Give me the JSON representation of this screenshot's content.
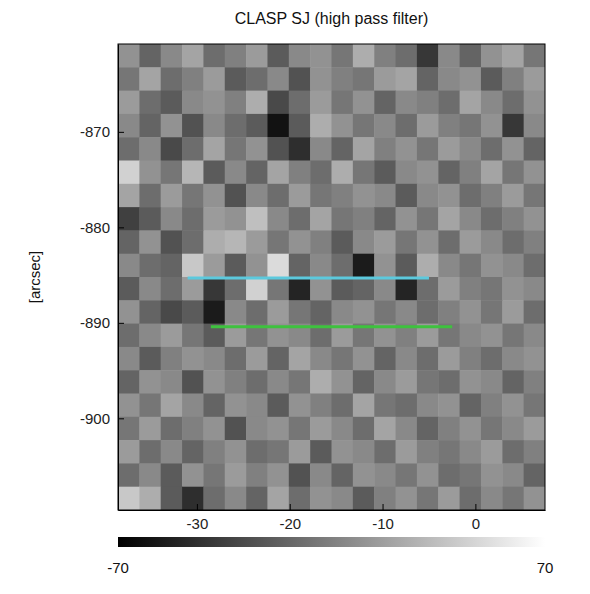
{
  "chart_data": {
    "type": "heatmap",
    "title": "CLASP SJ (high pass filter)",
    "y_label": "[arcsec]",
    "xlim": [
      -38.5,
      7.5
    ],
    "ylim": [
      -909.6,
      -860.8
    ],
    "xticks": [
      -30,
      -20,
      -10,
      0
    ],
    "yticks": [
      -870,
      -880,
      -890,
      -900
    ],
    "z": [
      [
        10,
        -15,
        5,
        20,
        -10,
        0,
        15,
        -20,
        5,
        10,
        -5,
        25,
        0,
        -10,
        -40,
        5,
        -15,
        10,
        20,
        -5
      ],
      [
        -5,
        20,
        -10,
        0,
        15,
        -20,
        -10,
        5,
        -25,
        10,
        0,
        -5,
        15,
        20,
        -15,
        5,
        10,
        -20,
        0,
        15
      ],
      [
        15,
        -10,
        -20,
        5,
        10,
        0,
        25,
        -30,
        -10,
        15,
        -5,
        10,
        -15,
        5,
        0,
        -10,
        20,
        5,
        -10,
        10
      ],
      [
        5,
        -15,
        10,
        -25,
        5,
        -10,
        -20,
        -60,
        -20,
        25,
        10,
        -5,
        5,
        -10,
        15,
        0,
        -5,
        10,
        -40,
        5
      ],
      [
        -10,
        5,
        -30,
        -10,
        20,
        -5,
        10,
        -25,
        -45,
        5,
        -15,
        20,
        0,
        10,
        -5,
        15,
        5,
        -10,
        10,
        -15
      ],
      [
        45,
        10,
        -5,
        30,
        -20,
        5,
        -15,
        20,
        0,
        -10,
        25,
        -5,
        -20,
        5,
        10,
        -15,
        0,
        20,
        -5,
        10
      ],
      [
        20,
        -10,
        15,
        -5,
        10,
        -25,
        5,
        -10,
        15,
        -5,
        0,
        10,
        5,
        -20,
        5,
        10,
        -10,
        0,
        15,
        -5
      ],
      [
        -35,
        -20,
        5,
        -10,
        15,
        10,
        35,
        5,
        -10,
        20,
        -5,
        0,
        -15,
        10,
        -5,
        20,
        5,
        -10,
        0,
        10
      ],
      [
        -15,
        10,
        -25,
        -10,
        25,
        30,
        15,
        -5,
        10,
        0,
        -20,
        5,
        15,
        -5,
        10,
        -10,
        15,
        5,
        -10,
        0
      ],
      [
        5,
        -10,
        -15,
        40,
        15,
        -20,
        10,
        50,
        -15,
        5,
        -10,
        -55,
        10,
        -20,
        25,
        5,
        -5,
        10,
        5,
        -10
      ],
      [
        -20,
        5,
        -10,
        15,
        -40,
        -10,
        45,
        -5,
        -50,
        10,
        -20,
        -15,
        5,
        -50,
        -10,
        15,
        0,
        -5,
        10,
        5
      ],
      [
        10,
        -15,
        -30,
        -20,
        -55,
        5,
        -10,
        15,
        -5,
        -15,
        5,
        10,
        -5,
        5,
        -10,
        0,
        10,
        -5,
        15,
        -10
      ],
      [
        -10,
        5,
        15,
        -5,
        -20,
        15,
        -5,
        10,
        5,
        -10,
        15,
        -5,
        10,
        0,
        15,
        -5,
        5,
        10,
        -5,
        5
      ],
      [
        5,
        -20,
        0,
        10,
        5,
        -10,
        15,
        -15,
        20,
        5,
        -5,
        10,
        -15,
        5,
        -10,
        15,
        0,
        -10,
        5,
        10
      ],
      [
        -15,
        10,
        5,
        -25,
        10,
        0,
        -10,
        5,
        -5,
        25,
        10,
        -15,
        5,
        15,
        -5,
        -10,
        10,
        5,
        -15,
        0
      ],
      [
        10,
        -5,
        20,
        5,
        -15,
        10,
        5,
        -20,
        10,
        0,
        -10,
        20,
        -5,
        -10,
        5,
        10,
        -15,
        0,
        10,
        -5
      ],
      [
        -5,
        15,
        -10,
        0,
        10,
        -25,
        5,
        10,
        -5,
        15,
        5,
        -10,
        20,
        5,
        -15,
        0,
        10,
        -5,
        5,
        15
      ],
      [
        15,
        -10,
        5,
        -15,
        0,
        10,
        -10,
        -5,
        15,
        -20,
        10,
        5,
        -10,
        15,
        0,
        -5,
        5,
        15,
        -10,
        0
      ],
      [
        -10,
        5,
        -20,
        10,
        -5,
        15,
        0,
        10,
        -25,
        5,
        -15,
        10,
        5,
        -5,
        10,
        -10,
        -5,
        10,
        5,
        -15
      ],
      [
        40,
        25,
        -20,
        -45,
        -10,
        5,
        -15,
        20,
        -10,
        10,
        5,
        -20,
        0,
        10,
        -5,
        15,
        -10,
        5,
        -5,
        10
      ]
    ],
    "colorbar": {
      "range": [
        -70,
        70
      ],
      "ticks": [
        -70,
        70
      ]
    },
    "lines": [
      {
        "color": "#5cc9dd",
        "x": [
          -31,
          -5
        ],
        "y": [
          -885.3,
          -885.3
        ]
      },
      {
        "color": "#3ec23e",
        "x": [
          -28.5,
          -2.5
        ],
        "y": [
          -890.4,
          -890.4
        ]
      }
    ]
  }
}
